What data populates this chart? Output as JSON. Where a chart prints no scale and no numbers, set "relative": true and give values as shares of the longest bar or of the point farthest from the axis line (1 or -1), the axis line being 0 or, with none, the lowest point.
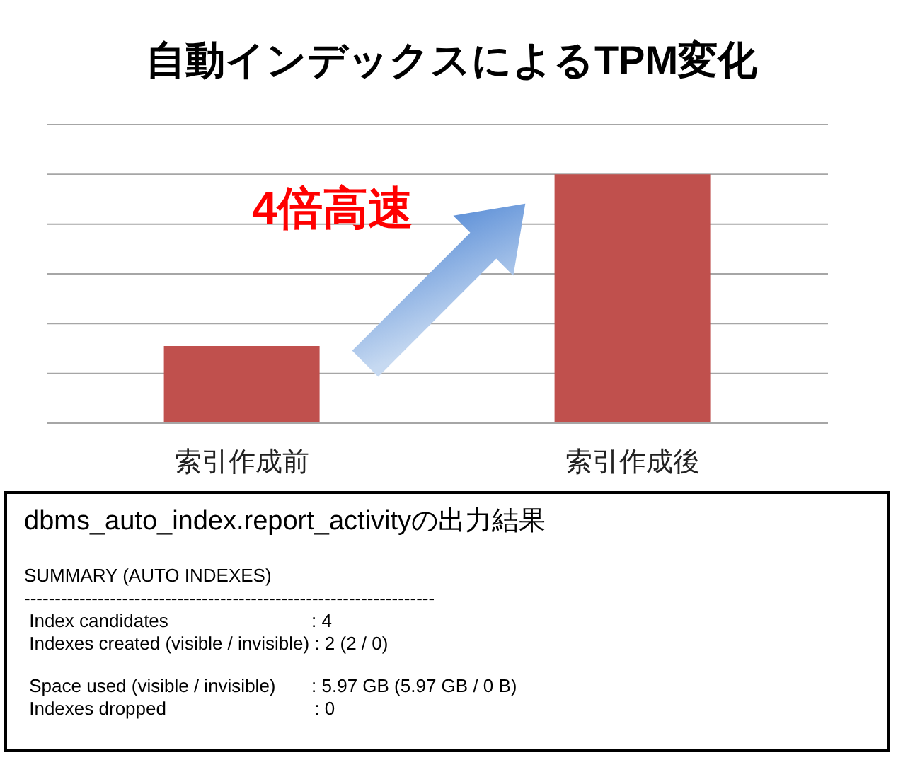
{
  "chart_data": {
    "type": "bar",
    "title": "自動インデックスによるTPM変化",
    "relative": true,
    "grid": "y",
    "color": "#c0504d",
    "categories": [
      "索引作成前",
      "索引作成後"
    ],
    "values": [
      0.31,
      1
    ],
    "annotations": [
      "4倍高速",
      "dbms_auto_index.report_activityの出力結果",
      "SUMMARY (AUTO INDEXES)",
      "-------------------------------------------------------------------",
      " Index candidates                            : 4",
      " Indexes created (visible / invisible) : 2 (2 / 0)",
      " Space used (visible / invisible)       : 5.97 GB (5.97 GB / 0 B)",
      " Indexes dropped                             : 0"
    ]
  }
}
